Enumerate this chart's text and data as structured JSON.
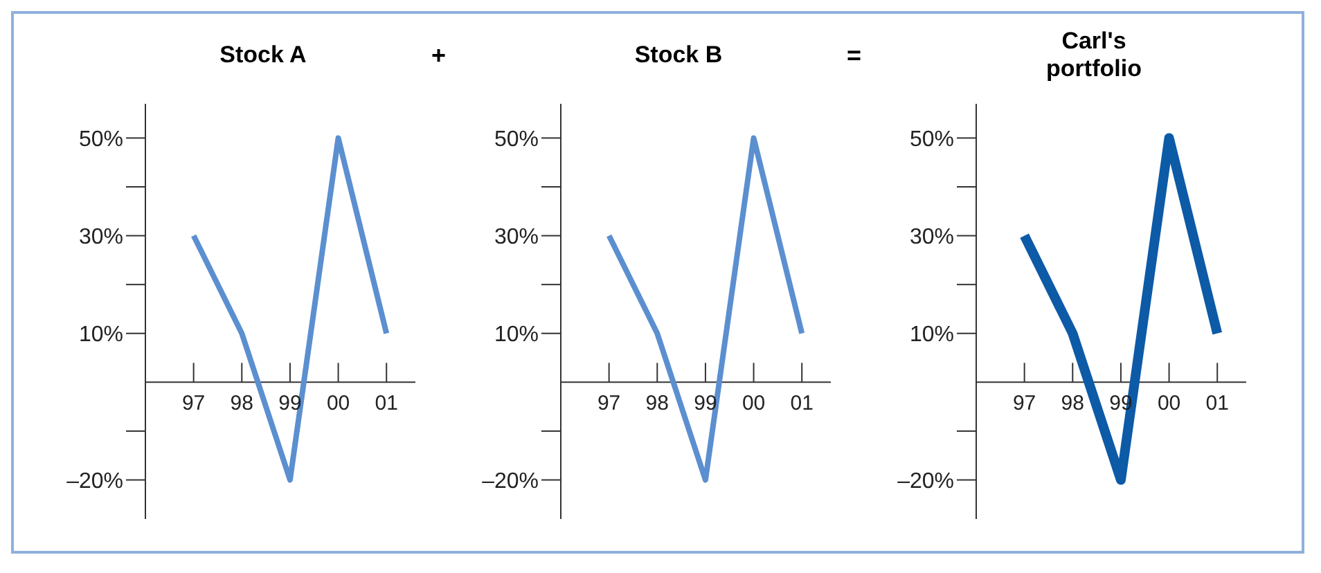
{
  "chart_data": [
    {
      "type": "line",
      "title": "Stock A",
      "annotations": [
        "+"
      ],
      "categories": [
        "97",
        "98",
        "99",
        "00",
        "01"
      ],
      "series": [
        {
          "color": "#5b8fd0",
          "values": [
            30,
            10,
            -20,
            50,
            10
          ]
        }
      ],
      "ylim": [
        -28,
        57
      ],
      "yticks": [
        {
          "value": 50,
          "label": "50%"
        },
        {
          "value": 40,
          "label": null
        },
        {
          "value": 30,
          "label": "30%"
        },
        {
          "value": 20,
          "label": null
        },
        {
          "value": 10,
          "label": "10%"
        },
        {
          "value": -10,
          "label": null
        },
        {
          "value": -20,
          "label": "–20%"
        }
      ]
    },
    {
      "type": "line",
      "title": "Stock B",
      "annotations": [
        "="
      ],
      "categories": [
        "97",
        "98",
        "99",
        "00",
        "01"
      ],
      "series": [
        {
          "color": "#5b8fd0",
          "values": [
            30,
            10,
            -20,
            50,
            10
          ]
        }
      ],
      "ylim": [
        -28,
        57
      ],
      "yticks": [
        {
          "value": 50,
          "label": "50%"
        },
        {
          "value": 40,
          "label": null
        },
        {
          "value": 30,
          "label": "30%"
        },
        {
          "value": 20,
          "label": null
        },
        {
          "value": 10,
          "label": "10%"
        },
        {
          "value": -10,
          "label": null
        },
        {
          "value": -20,
          "label": "–20%"
        }
      ]
    },
    {
      "type": "line",
      "title": "Carl's portfolio",
      "categories": [
        "97",
        "98",
        "99",
        "00",
        "01"
      ],
      "series": [
        {
          "color": "#0d5aa7",
          "values": [
            30,
            10,
            -20,
            50,
            10
          ]
        }
      ],
      "ylim": [
        -28,
        57
      ],
      "yticks": [
        {
          "value": 50,
          "label": "50%"
        },
        {
          "value": 40,
          "label": null
        },
        {
          "value": 30,
          "label": "30%"
        },
        {
          "value": 20,
          "label": null
        },
        {
          "value": 10,
          "label": "10%"
        },
        {
          "value": -10,
          "label": null
        },
        {
          "value": -20,
          "label": "–20%"
        }
      ]
    }
  ]
}
